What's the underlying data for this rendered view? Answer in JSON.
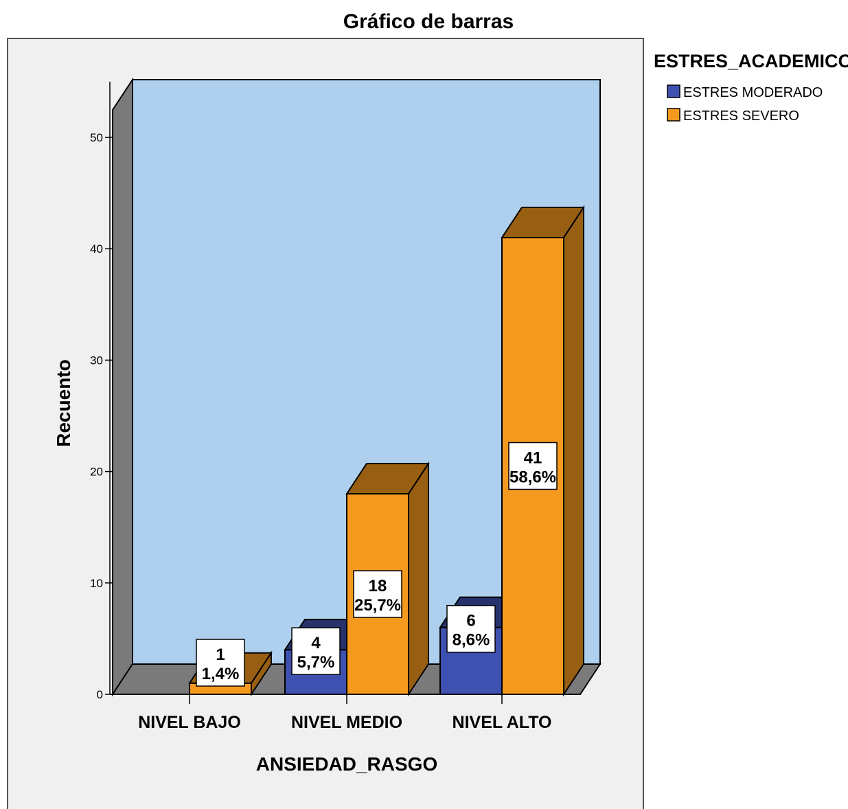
{
  "chart_data": {
    "type": "bar",
    "title": "Gráfico de barras",
    "xlabel": "ANSIEDAD_RASGO",
    "ylabel": "Recuento",
    "categories": [
      "NIVEL BAJO",
      "NIVEL MEDIO",
      "NIVEL ALTO"
    ],
    "ylim": [
      0,
      55
    ],
    "yticks": [
      "0",
      "10",
      "20",
      "30",
      "40",
      "50"
    ],
    "grid": false,
    "three_d": true,
    "legend": {
      "title": "ESTRES_ACADEMICO",
      "position": "top-right"
    },
    "series": [
      {
        "name": "ESTRES MODERADO",
        "color": "#3f51b0",
        "values": [
          null,
          4,
          6
        ],
        "labels": [
          null,
          [
            "4",
            "5,7%"
          ],
          [
            "6",
            "8,6%"
          ]
        ]
      },
      {
        "name": "ESTRES SEVERO",
        "color": "#f59a1f",
        "values": [
          1,
          18,
          41
        ],
        "labels": [
          [
            "1",
            "1,4%"
          ],
          [
            "18",
            "25,7%"
          ],
          [
            "41",
            "58,6%"
          ]
        ]
      }
    ],
    "colors": {
      "plot_background": "#aed0ee",
      "chart_background": "#f0f0f0",
      "floor_and_wall": "#7a7a7a"
    }
  }
}
